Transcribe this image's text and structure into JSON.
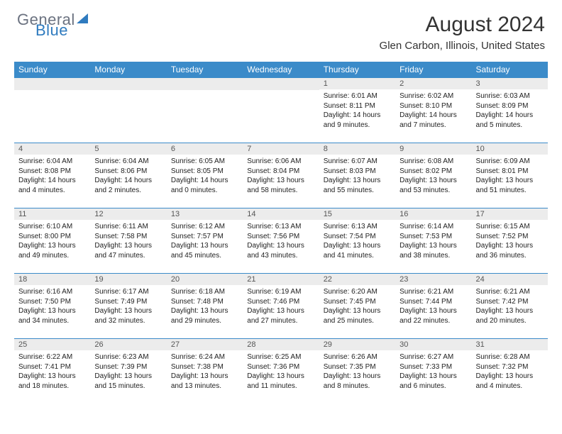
{
  "brand": {
    "line1": "General",
    "line2": "Blue",
    "accent_color": "#2f7bbf",
    "text_color": "#6b7280"
  },
  "title": "August 2024",
  "location": "Glen Carbon, Illinois, United States",
  "header_bg": "#3b8bc9",
  "days_of_week": [
    "Sunday",
    "Monday",
    "Tuesday",
    "Wednesday",
    "Thursday",
    "Friday",
    "Saturday"
  ],
  "weeks": [
    [
      null,
      null,
      null,
      null,
      {
        "n": "1",
        "sunrise": "6:01 AM",
        "sunset": "8:11 PM",
        "daylight": "14 hours and 9 minutes."
      },
      {
        "n": "2",
        "sunrise": "6:02 AM",
        "sunset": "8:10 PM",
        "daylight": "14 hours and 7 minutes."
      },
      {
        "n": "3",
        "sunrise": "6:03 AM",
        "sunset": "8:09 PM",
        "daylight": "14 hours and 5 minutes."
      }
    ],
    [
      {
        "n": "4",
        "sunrise": "6:04 AM",
        "sunset": "8:08 PM",
        "daylight": "14 hours and 4 minutes."
      },
      {
        "n": "5",
        "sunrise": "6:04 AM",
        "sunset": "8:06 PM",
        "daylight": "14 hours and 2 minutes."
      },
      {
        "n": "6",
        "sunrise": "6:05 AM",
        "sunset": "8:05 PM",
        "daylight": "14 hours and 0 minutes."
      },
      {
        "n": "7",
        "sunrise": "6:06 AM",
        "sunset": "8:04 PM",
        "daylight": "13 hours and 58 minutes."
      },
      {
        "n": "8",
        "sunrise": "6:07 AM",
        "sunset": "8:03 PM",
        "daylight": "13 hours and 55 minutes."
      },
      {
        "n": "9",
        "sunrise": "6:08 AM",
        "sunset": "8:02 PM",
        "daylight": "13 hours and 53 minutes."
      },
      {
        "n": "10",
        "sunrise": "6:09 AM",
        "sunset": "8:01 PM",
        "daylight": "13 hours and 51 minutes."
      }
    ],
    [
      {
        "n": "11",
        "sunrise": "6:10 AM",
        "sunset": "8:00 PM",
        "daylight": "13 hours and 49 minutes."
      },
      {
        "n": "12",
        "sunrise": "6:11 AM",
        "sunset": "7:58 PM",
        "daylight": "13 hours and 47 minutes."
      },
      {
        "n": "13",
        "sunrise": "6:12 AM",
        "sunset": "7:57 PM",
        "daylight": "13 hours and 45 minutes."
      },
      {
        "n": "14",
        "sunrise": "6:13 AM",
        "sunset": "7:56 PM",
        "daylight": "13 hours and 43 minutes."
      },
      {
        "n": "15",
        "sunrise": "6:13 AM",
        "sunset": "7:54 PM",
        "daylight": "13 hours and 41 minutes."
      },
      {
        "n": "16",
        "sunrise": "6:14 AM",
        "sunset": "7:53 PM",
        "daylight": "13 hours and 38 minutes."
      },
      {
        "n": "17",
        "sunrise": "6:15 AM",
        "sunset": "7:52 PM",
        "daylight": "13 hours and 36 minutes."
      }
    ],
    [
      {
        "n": "18",
        "sunrise": "6:16 AM",
        "sunset": "7:50 PM",
        "daylight": "13 hours and 34 minutes."
      },
      {
        "n": "19",
        "sunrise": "6:17 AM",
        "sunset": "7:49 PM",
        "daylight": "13 hours and 32 minutes."
      },
      {
        "n": "20",
        "sunrise": "6:18 AM",
        "sunset": "7:48 PM",
        "daylight": "13 hours and 29 minutes."
      },
      {
        "n": "21",
        "sunrise": "6:19 AM",
        "sunset": "7:46 PM",
        "daylight": "13 hours and 27 minutes."
      },
      {
        "n": "22",
        "sunrise": "6:20 AM",
        "sunset": "7:45 PM",
        "daylight": "13 hours and 25 minutes."
      },
      {
        "n": "23",
        "sunrise": "6:21 AM",
        "sunset": "7:44 PM",
        "daylight": "13 hours and 22 minutes."
      },
      {
        "n": "24",
        "sunrise": "6:21 AM",
        "sunset": "7:42 PM",
        "daylight": "13 hours and 20 minutes."
      }
    ],
    [
      {
        "n": "25",
        "sunrise": "6:22 AM",
        "sunset": "7:41 PM",
        "daylight": "13 hours and 18 minutes."
      },
      {
        "n": "26",
        "sunrise": "6:23 AM",
        "sunset": "7:39 PM",
        "daylight": "13 hours and 15 minutes."
      },
      {
        "n": "27",
        "sunrise": "6:24 AM",
        "sunset": "7:38 PM",
        "daylight": "13 hours and 13 minutes."
      },
      {
        "n": "28",
        "sunrise": "6:25 AM",
        "sunset": "7:36 PM",
        "daylight": "13 hours and 11 minutes."
      },
      {
        "n": "29",
        "sunrise": "6:26 AM",
        "sunset": "7:35 PM",
        "daylight": "13 hours and 8 minutes."
      },
      {
        "n": "30",
        "sunrise": "6:27 AM",
        "sunset": "7:33 PM",
        "daylight": "13 hours and 6 minutes."
      },
      {
        "n": "31",
        "sunrise": "6:28 AM",
        "sunset": "7:32 PM",
        "daylight": "13 hours and 4 minutes."
      }
    ]
  ],
  "labels": {
    "sunrise": "Sunrise:",
    "sunset": "Sunset:",
    "daylight": "Daylight:"
  }
}
